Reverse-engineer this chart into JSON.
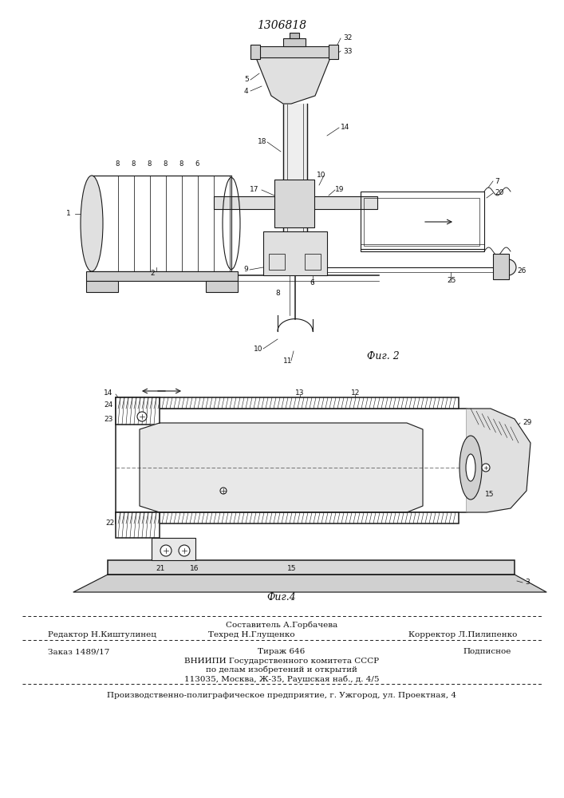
{
  "patent_number": "1306818",
  "fig2_label": "Фиг. 2",
  "fig4_label": "Фиг.4",
  "footer_line1": "Составитель А.Горбачева",
  "footer_line2_col1": "Редактор Н.Киштулинец",
  "footer_line2_col2": "Техред Н.Глущенко",
  "footer_line2_col3": "Корректор Л.Пилипенко",
  "footer_line3_col1": "Заказ 1489/17",
  "footer_line3_col2": "Тираж 646",
  "footer_line3_col3": "Подписное",
  "footer_line4": "ВНИИПИ Государственного комитета СССР",
  "footer_line5": "по делам изобретений и открытий",
  "footer_line6": "113035, Москва, Ж-35, Раушская наб., д. 4/5",
  "footer_line7": "Производственно-полиграфическое предприятие, г. Ужгород, ул. Проектная, 4",
  "bg_color": "#ffffff",
  "line_color": "#1a1a1a",
  "text_color": "#111111"
}
